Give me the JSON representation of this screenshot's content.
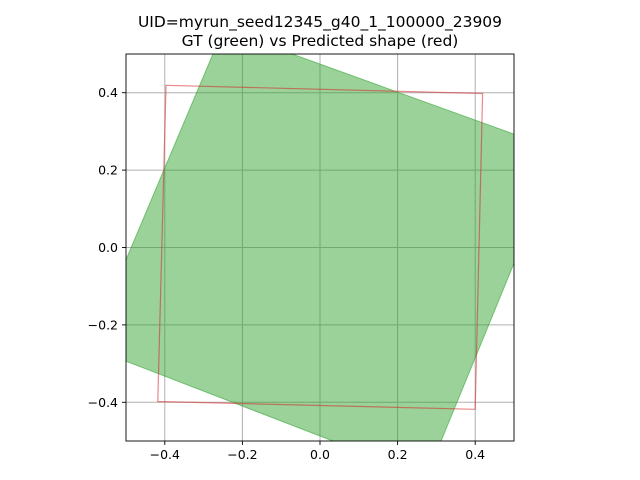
{
  "chart_data": {
    "type": "polygon-overlay",
    "title": "UID=myrun_seed12345_g40_1_100000_23909",
    "subtitle": "GT (green) vs Predicted shape (red)",
    "xlim": [
      -0.5,
      0.5
    ],
    "ylim": [
      -0.5,
      0.5
    ],
    "xticks": [
      -0.4,
      -0.2,
      0.0,
      0.2,
      0.4
    ],
    "yticks": [
      -0.4,
      -0.2,
      0.0,
      0.2,
      0.4
    ],
    "xtick_labels": [
      "−0.4",
      "−0.2",
      "0.0",
      "0.2",
      "0.4"
    ],
    "ytick_labels": [
      "−0.4",
      "−0.2",
      "0.0",
      "0.2",
      "0.4"
    ],
    "grid": true,
    "series": [
      {
        "name": "GT",
        "color": "#2ca02c",
        "fill": true,
        "points": [
          [
            -0.249,
            0.564
          ],
          [
            0.619,
            0.25
          ],
          [
            0.274,
            -0.593
          ],
          [
            -0.595,
            -0.257
          ]
        ]
      },
      {
        "name": "Predicted",
        "color": "#d62728",
        "fill": false,
        "points": [
          [
            -0.397,
            0.419
          ],
          [
            0.419,
            0.398
          ],
          [
            0.4,
            -0.418
          ],
          [
            -0.418,
            -0.398
          ]
        ]
      }
    ]
  }
}
